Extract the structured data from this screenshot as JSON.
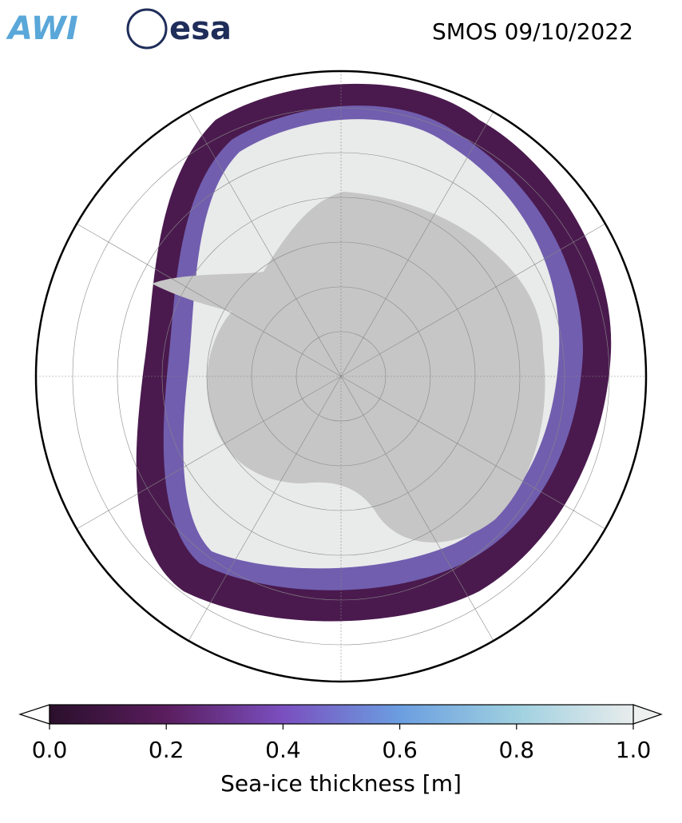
{
  "header": {
    "logos": [
      "AWI",
      "esa"
    ],
    "title": "SMOS 09/10/2022"
  },
  "colorbar": {
    "label": "Sea-ice thickness [m]",
    "lim": [
      0,
      1
    ],
    "ticks": [
      {
        "value": 0,
        "label": "0.0"
      },
      {
        "value": 0.2,
        "label": "0.2"
      },
      {
        "value": 0.4,
        "label": "0.4"
      },
      {
        "value": 0.6,
        "label": "0.6"
      },
      {
        "value": 0.8,
        "label": "0.8"
      },
      {
        "value": 1,
        "label": "1.0"
      }
    ],
    "colors": [
      "#2a0f2b",
      "#5a1d5e",
      "#7a4fbf",
      "#6b9ee0",
      "#9fd0e0",
      "#e8ecec"
    ]
  }
}
